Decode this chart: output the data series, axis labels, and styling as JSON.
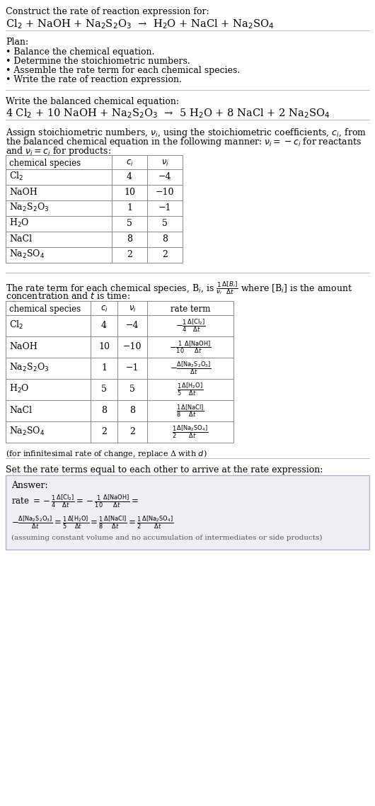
{
  "title_line1": "Construct the rate of reaction expression for:",
  "reaction_unbalanced": "Cl$_2$ + NaOH + Na$_2$S$_2$O$_3$  →  H$_2$O + NaCl + Na$_2$SO$_4$",
  "plan_header": "Plan:",
  "plan_items": [
    "• Balance the chemical equation.",
    "• Determine the stoichiometric numbers.",
    "• Assemble the rate term for each chemical species.",
    "• Write the rate of reaction expression."
  ],
  "balanced_header": "Write the balanced chemical equation:",
  "reaction_balanced": "4 Cl$_2$ + 10 NaOH + Na$_2$S$_2$O$_3$  →  5 H$_2$O + 8 NaCl + 2 Na$_2$SO$_4$",
  "stoich_intro1": "Assign stoichiometric numbers, $\\nu_i$, using the stoichiometric coefficients, $c_i$, from",
  "stoich_intro2": "the balanced chemical equation in the following manner: $\\nu_i = -c_i$ for reactants",
  "stoich_intro3": "and $\\nu_i = c_i$ for products:",
  "table1_headers": [
    "chemical species",
    "$c_i$",
    "$\\nu_i$"
  ],
  "table1_data": [
    [
      "Cl$_2$",
      "4",
      "−4"
    ],
    [
      "NaOH",
      "10",
      "−10"
    ],
    [
      "Na$_2$S$_2$O$_3$",
      "1",
      "−1"
    ],
    [
      "H$_2$O",
      "5",
      "5"
    ],
    [
      "NaCl",
      "8",
      "8"
    ],
    [
      "Na$_2$SO$_4$",
      "2",
      "2"
    ]
  ],
  "rate_intro1": "The rate term for each chemical species, B$_i$, is $\\frac{1}{\\nu_i}\\frac{\\Delta[B_i]}{\\Delta t}$ where [B$_i$] is the amount",
  "rate_intro2": "concentration and $t$ is time:",
  "table2_headers": [
    "chemical species",
    "$c_i$",
    "$\\nu_i$",
    "rate term"
  ],
  "table2_data": [
    [
      "Cl$_2$",
      "4",
      "−4",
      "$-\\frac{1}{4}\\frac{\\Delta[\\mathrm{Cl_2}]}{\\Delta t}$"
    ],
    [
      "NaOH",
      "10",
      "−10",
      "$-\\frac{1}{10}\\frac{\\Delta[\\mathrm{NaOH}]}{\\Delta t}$"
    ],
    [
      "Na$_2$S$_2$O$_3$",
      "1",
      "−1",
      "$-\\frac{\\Delta[\\mathrm{Na_2S_2O_3}]}{\\Delta t}$"
    ],
    [
      "H$_2$O",
      "5",
      "5",
      "$\\frac{1}{5}\\frac{\\Delta[\\mathrm{H_2O}]}{\\Delta t}$"
    ],
    [
      "NaCl",
      "8",
      "8",
      "$\\frac{1}{8}\\frac{\\Delta[\\mathrm{NaCl}]}{\\Delta t}$"
    ],
    [
      "Na$_2$SO$_4$",
      "2",
      "2",
      "$\\frac{1}{2}\\frac{\\Delta[\\mathrm{Na_2SO_4}]}{\\Delta t}$"
    ]
  ],
  "infinitesimal_note": "(for infinitesimal rate of change, replace Δ with $d$)",
  "rate_eq_header": "Set the rate terms equal to each other to arrive at the rate expression:",
  "answer_label": "Answer:",
  "answer_line1": "rate $= -\\frac{1}{4}\\frac{\\Delta[\\mathrm{Cl_2}]}{\\Delta t} = -\\frac{1}{10}\\frac{\\Delta[\\mathrm{NaOH}]}{\\Delta t} =$",
  "answer_line2": "$-\\frac{\\Delta[\\mathrm{Na_2S_2O_3}]}{\\Delta t} = \\frac{1}{5}\\frac{\\Delta[\\mathrm{H_2O}]}{\\Delta t} = \\frac{1}{8}\\frac{\\Delta[\\mathrm{NaCl}]}{\\Delta t} = \\frac{1}{2}\\frac{\\Delta[\\mathrm{Na_2SO_4}]}{\\Delta t}$",
  "footer_note": "(assuming constant volume and no accumulation of intermediates or side products)",
  "bg_color": "#ffffff",
  "text_color": "#000000",
  "sep_color": "#bbbbbb",
  "table_color": "#888888",
  "answer_bg": "#eeeef5",
  "answer_border": "#aaaacc"
}
